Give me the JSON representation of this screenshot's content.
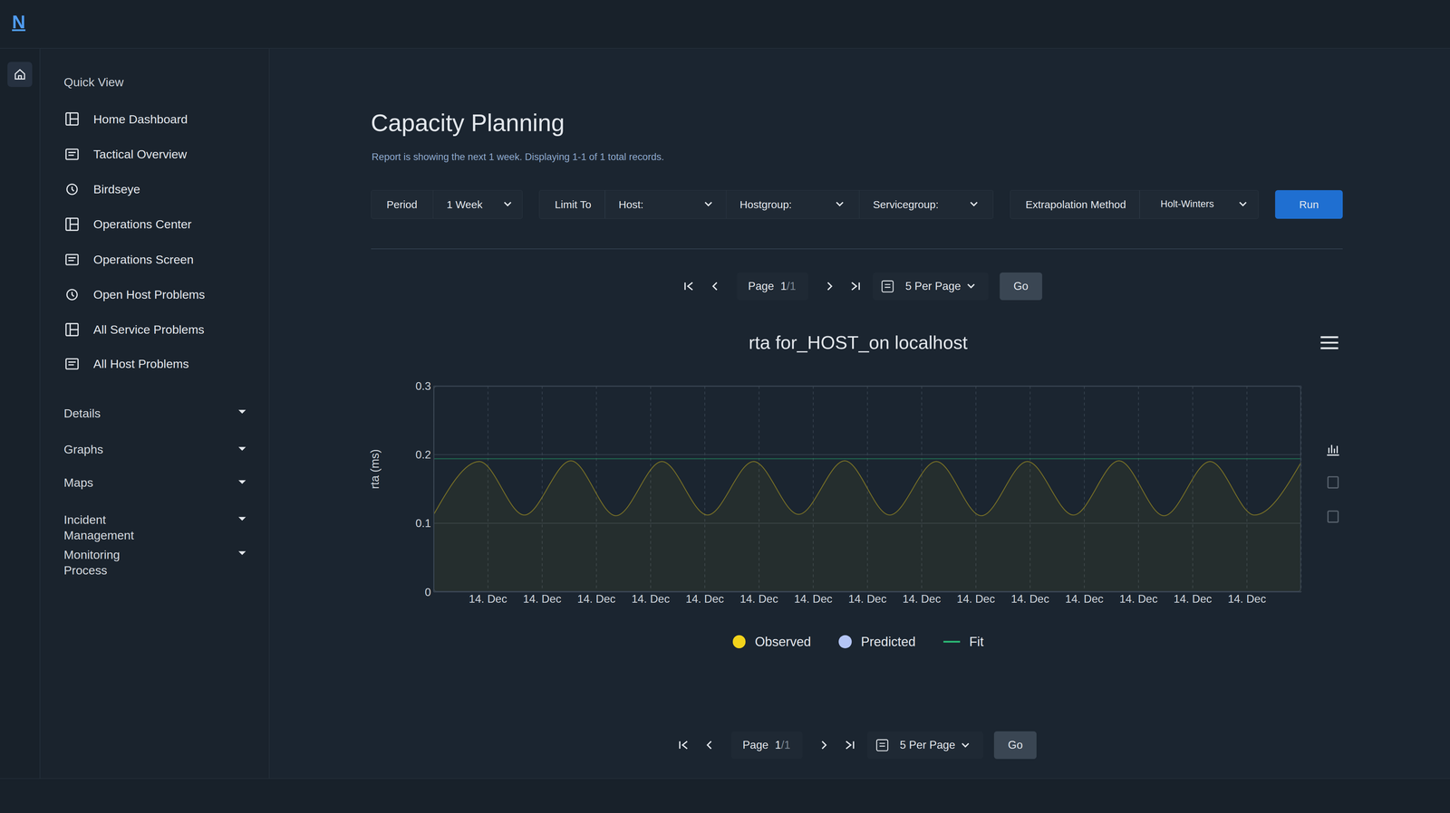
{
  "logo": "N",
  "sidebar": {
    "quick_view": "Quick View",
    "items": [
      "Home Dashboard",
      "Tactical Overview",
      "Birdseye",
      "Operations Center",
      "Operations Screen",
      "Open Host Problems",
      "All Service Problems",
      "All Host Problems"
    ],
    "sections": [
      "Details",
      "Graphs",
      "Maps",
      "Incident Management",
      "Monitoring Process"
    ]
  },
  "page": {
    "title": "Capacity Planning",
    "subtitle": "Report is showing the next 1 week. Displaying 1-1 of 1 total records."
  },
  "filters": {
    "period_label": "Period",
    "period": "1 Week",
    "limit_label": "Limit To",
    "host": "Host:",
    "hostgroup": "Hostgroup:",
    "servicegroup": "Servicegroup:",
    "method_label": "Extrapolation Method",
    "method": "Holt-Winters",
    "run": "Run"
  },
  "pagination": {
    "page_label": "Page",
    "page": "1",
    "total": "/1",
    "per_page": "5 Per Page",
    "go": "Go"
  },
  "chart_data": {
    "type": "area",
    "title": "rta for_HOST_on localhost",
    "y_label": "rta (ms)",
    "x": [
      0,
      0.84,
      1.67,
      2.53,
      3.36,
      4.21,
      5.05,
      5.9,
      6.73,
      7.58,
      8.41,
      9.27,
      10.1,
      10.95,
      11.8,
      12.64,
      13.47,
      14.32,
      15.14,
      16
    ],
    "xlim": [
      0,
      16
    ],
    "xticks": [
      {
        "value": 1,
        "label": "14. Dec"
      },
      {
        "value": 2,
        "label": "14. Dec"
      },
      {
        "value": 3,
        "label": "14. Dec"
      },
      {
        "value": 4,
        "label": "14. Dec"
      },
      {
        "value": 5,
        "label": "14. Dec"
      },
      {
        "value": 6,
        "label": "14. Dec"
      },
      {
        "value": 7,
        "label": "14. Dec"
      },
      {
        "value": 8,
        "label": "14. Dec"
      },
      {
        "value": 9,
        "label": "14. Dec"
      },
      {
        "value": 10,
        "label": "14. Dec"
      },
      {
        "value": 11,
        "label": "14. Dec"
      },
      {
        "value": 12,
        "label": "14. Dec"
      },
      {
        "value": 13,
        "label": "14. Dec"
      },
      {
        "value": 14,
        "label": "14. Dec"
      },
      {
        "value": 15,
        "label": "14. Dec"
      }
    ],
    "ylim": [
      0,
      0.3
    ],
    "yticks": [
      0,
      0.1,
      0.2,
      0.3
    ],
    "grid": true,
    "series": [
      {
        "name": "Observed",
        "color": "#f2d31b",
        "type": "area",
        "marker": "circle",
        "values": [
          0.113,
          0.19,
          0.112,
          0.191,
          0.111,
          0.19,
          0.112,
          0.19,
          0.113,
          0.191,
          0.112,
          0.19,
          0.111,
          0.19,
          0.112,
          0.191,
          0.111,
          0.19,
          0.112,
          0.189
        ]
      },
      {
        "name": "Predicted",
        "color": "#b4c5f5",
        "type": "line",
        "marker": "circle",
        "values": [
          null,
          null,
          null,
          null,
          null,
          null,
          null,
          null,
          null,
          null,
          null,
          null,
          null,
          null,
          null,
          null,
          null,
          null,
          null,
          null
        ]
      },
      {
        "name": "Fit",
        "color": "#2bb673",
        "type": "line",
        "line_style": "solid",
        "values": [
          0.194,
          0.194,
          0.194,
          0.194,
          0.194,
          0.194,
          0.194,
          0.194,
          0.194,
          0.194,
          0.194,
          0.194,
          0.194,
          0.194,
          0.194,
          0.194,
          0.194,
          0.194,
          0.194,
          0.194
        ]
      }
    ]
  }
}
